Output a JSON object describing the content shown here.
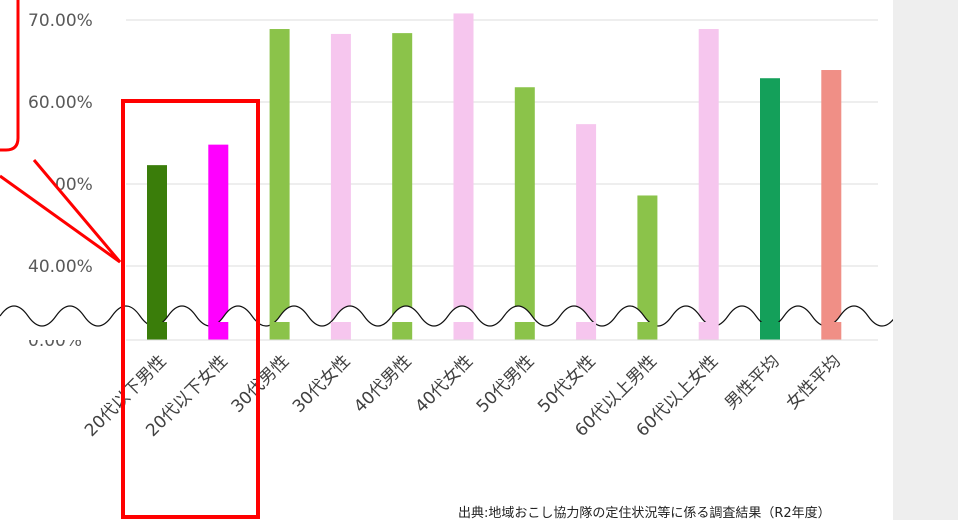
{
  "chart_data": {
    "type": "bar",
    "title": "",
    "xlabel": "",
    "ylabel": "",
    "ylim_upper": [
      40,
      70
    ],
    "ylim_lower": [
      0,
      0
    ],
    "y_ticks": [
      "70.00%",
      "60.00%",
      "50.00%",
      "40.00%",
      "0.00%"
    ],
    "grid": true,
    "axis_break": true,
    "categories": [
      "20代以下男性",
      "20代以下女性",
      "30代男性",
      "30代女性",
      "40代男性",
      "40代女性",
      "50代男性",
      "50代女性",
      "60代以上男性",
      "60代以上女性",
      "男性平均",
      "女性平均"
    ],
    "values": [
      52.3,
      54.8,
      68.9,
      68.3,
      68.4,
      70.8,
      61.8,
      57.3,
      48.6,
      68.9,
      62.9,
      63.9
    ],
    "bar_colors": [
      "#3a7d0a",
      "#ff00ff",
      "#8bc34a",
      "#f6c6ee",
      "#8bc34a",
      "#f6c6ee",
      "#8bc34a",
      "#f6c6ee",
      "#8bc34a",
      "#f6c6ee",
      "#14a05a",
      "#f08f86"
    ],
    "highlight_color": "#ff0000"
  },
  "source_note": "出典:地域おこし協力隊の定住状況等に係る調査結果（R2年度）"
}
